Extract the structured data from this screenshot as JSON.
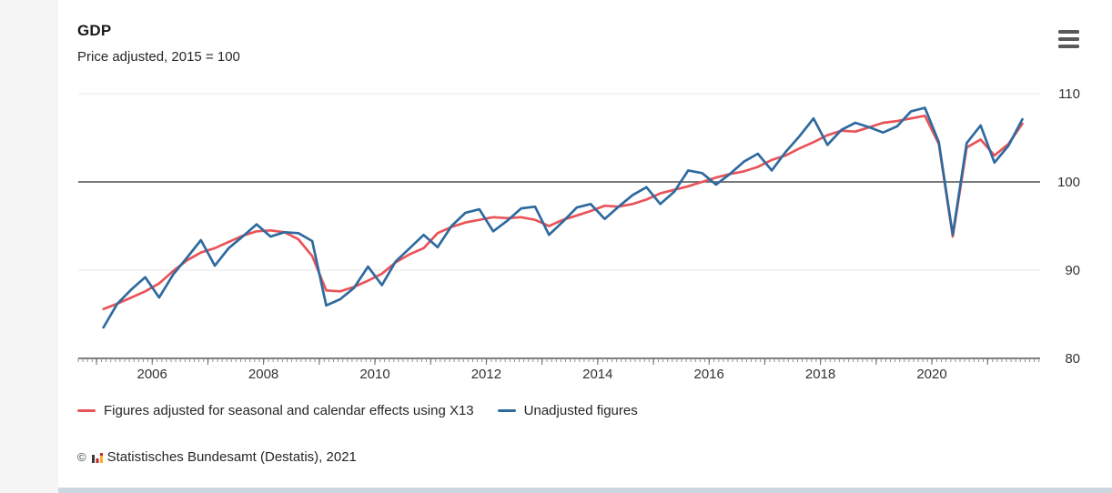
{
  "chart_data": {
    "type": "line",
    "title": "GDP",
    "subtitle": "Price adjusted, 2015 = 100",
    "x_unit": "quarterly",
    "x_start": "2005-Q1",
    "x_end": "2021-Q3",
    "x_tick_labels": [
      "2006",
      "2008",
      "2010",
      "2012",
      "2014",
      "2016",
      "2018",
      "2020"
    ],
    "y_ticks": [
      80,
      90,
      100,
      110
    ],
    "ylim": [
      80,
      110
    ],
    "baseline_value": 100,
    "grid": true,
    "legend_position": "bottom",
    "series": [
      {
        "name": "Figures adjusted for seasonal and calendar effects using X13",
        "color": "#e8545a",
        "values": [
          85.6,
          86.2,
          86.9,
          87.6,
          88.5,
          89.9,
          91.1,
          92.0,
          92.5,
          93.2,
          93.9,
          94.4,
          94.5,
          94.3,
          93.5,
          91.6,
          87.7,
          87.6,
          88.1,
          88.8,
          89.6,
          90.9,
          91.8,
          92.5,
          94.2,
          94.9,
          95.4,
          95.7,
          96.0,
          95.9,
          96.0,
          95.7,
          95.0,
          95.7,
          96.2,
          96.7,
          97.3,
          97.2,
          97.5,
          98.0,
          98.7,
          99.1,
          99.5,
          100.0,
          100.5,
          100.9,
          101.2,
          101.7,
          102.5,
          103.0,
          103.8,
          104.5,
          105.3,
          105.8,
          105.7,
          106.2,
          106.7,
          106.9,
          107.2,
          107.5,
          104.3,
          93.8,
          103.9,
          104.8,
          103.0,
          104.3,
          106.6
        ]
      },
      {
        "name": "Unadjusted figures",
        "color": "#2e6a9e",
        "values": [
          83.5,
          86.2,
          87.8,
          89.2,
          86.9,
          89.5,
          91.4,
          93.4,
          90.5,
          92.5,
          93.8,
          95.2,
          93.8,
          94.3,
          94.2,
          93.3,
          86.0,
          86.7,
          88.0,
          90.4,
          88.3,
          91.0,
          92.5,
          94.0,
          92.6,
          95.0,
          96.5,
          96.9,
          94.4,
          95.6,
          97.0,
          97.2,
          94.0,
          95.5,
          97.1,
          97.5,
          95.8,
          97.2,
          98.5,
          99.4,
          97.5,
          98.9,
          101.3,
          101.0,
          99.7,
          100.9,
          102.3,
          103.2,
          101.3,
          103.4,
          105.2,
          107.2,
          104.2,
          105.9,
          106.7,
          106.2,
          105.6,
          106.3,
          108.0,
          108.4,
          104.5,
          94.0,
          104.4,
          106.4,
          102.2,
          104.1,
          107.1
        ]
      }
    ]
  },
  "footer": {
    "copyright": "©",
    "source": "Statistisches Bundesamt (Destatis), 2021"
  }
}
